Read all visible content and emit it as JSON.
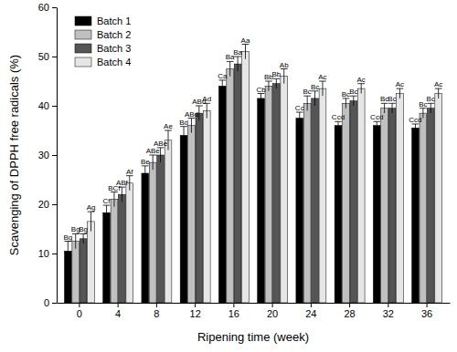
{
  "chart_data": {
    "type": "bar",
    "x_label": "Ripening time (week)",
    "y_label": "Scavenging of DPPH free radicals (%)",
    "categories": [
      "0",
      "4",
      "8",
      "12",
      "16",
      "20",
      "24",
      "28",
      "32",
      "36"
    ],
    "ylim": [
      0,
      60
    ],
    "yticks": [
      0,
      10,
      20,
      30,
      40,
      50,
      60
    ],
    "legend": "upper left",
    "series": [
      {
        "name": "Batch 1",
        "color": "#000000",
        "values": [
          10.5,
          18.3,
          26.3,
          34,
          44,
          41.5,
          37.5,
          36,
          36,
          35.5
        ],
        "errors": [
          2,
          1.5,
          1.5,
          1.8,
          1.2,
          1,
          1.2,
          0.8,
          0.8,
          0.8
        ],
        "annotations": [
          "Bg",
          "Cf",
          "Be",
          "Bd",
          "Ca",
          "Cb",
          "Cc",
          "Ccd",
          "Ccd",
          "Ccd"
        ]
      },
      {
        "name": "Batch 2",
        "color": "#c0c0c0",
        "values": [
          12.5,
          21,
          28.5,
          36,
          47.5,
          44,
          40.5,
          40.5,
          39.5,
          38.5
        ],
        "errors": [
          1.5,
          1.5,
          1.5,
          1.5,
          1.5,
          1,
          1.5,
          1,
          1,
          1
        ],
        "annotations": [
          "Bg",
          "BCf",
          "ABe",
          "ABd",
          "Ba",
          "Bb",
          "Bc",
          "Bc",
          "Bc",
          "Bc"
        ]
      },
      {
        "name": "Batch 3",
        "color": "#555555",
        "values": [
          13,
          22,
          30,
          38.5,
          48.5,
          44.5,
          41.5,
          41,
          39.5,
          39.5
        ],
        "errors": [
          1,
          1.5,
          1.5,
          1.5,
          1.5,
          1,
          1.5,
          1,
          1,
          1
        ],
        "annotations": [
          "Bg",
          "ABf",
          "ABe",
          "ABd",
          "Ba",
          "Bb",
          "Bc",
          "Bc",
          "Bc",
          "Bc"
        ]
      },
      {
        "name": "Batch 4",
        "color": "#e6e6e6",
        "values": [
          16.5,
          24.3,
          33,
          39,
          51,
          46,
          43.5,
          43.5,
          42.5,
          42.5
        ],
        "errors": [
          2,
          1.5,
          2,
          1.5,
          1.5,
          1.5,
          1.5,
          1,
          1,
          1
        ],
        "annotations": [
          "Ag",
          "Af",
          "Ae",
          "Ad",
          "Aa",
          "Ab",
          "Ac",
          "Ac",
          "Ac",
          "Ac"
        ]
      }
    ]
  }
}
